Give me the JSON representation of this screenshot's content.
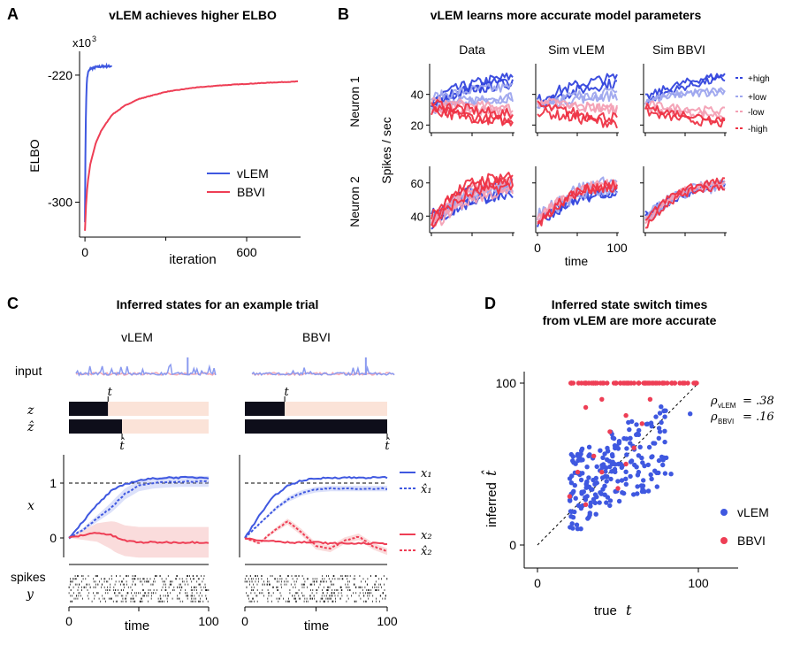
{
  "panels": {
    "A": {
      "letter": "A",
      "title": "vLEM achieves higher ELBO"
    },
    "B": {
      "letter": "B",
      "title": "vLEM learns more accurate model parameters"
    },
    "C": {
      "letter": "C",
      "title": "Inferred states for an example trial"
    },
    "D": {
      "letter": "D",
      "title_line1": "Inferred state switch times",
      "title_line2": "from vLEM are more accurate"
    }
  },
  "colors": {
    "vlem": "#3f58e0",
    "bbvi": "#ee3e55",
    "high_pos": "#3344dd",
    "low_pos": "#9ea6ee",
    "low_neg": "#f3a0b4",
    "high_neg": "#ee3344"
  },
  "chart_data": [
    {
      "id": "A",
      "type": "line",
      "title": "vLEM achieves higher ELBO",
      "xlabel": "iteration",
      "ylabel": "ELBO",
      "multiplier": "x10",
      "multiplier_exp": "3",
      "xlim": [
        -20,
        800
      ],
      "ylim": [
        -322,
        -205
      ],
      "xticks": [
        0,
        600
      ],
      "xtick_labels": [
        "0",
        "600"
      ],
      "yticks": [
        -220,
        -300
      ],
      "ytick_labels": [
        "-220",
        "-300"
      ],
      "legend": {
        "position": "bottom-right",
        "entries": [
          "vLEM",
          "BBVI"
        ]
      },
      "series": [
        {
          "name": "vLEM",
          "x": [
            0,
            1,
            2,
            4,
            6,
            8,
            12,
            20,
            40,
            60,
            80,
            100
          ],
          "y": [
            -312,
            -290,
            -262,
            -240,
            -228,
            -222,
            -218,
            -216,
            -215,
            -214.6,
            -214.4,
            -214.3
          ]
        },
        {
          "name": "BBVI",
          "x": [
            0,
            3,
            6,
            10,
            20,
            40,
            60,
            100,
            150,
            200,
            300,
            400,
            500,
            600,
            700,
            790
          ],
          "y": [
            -318,
            -305,
            -296,
            -288,
            -276,
            -263,
            -255,
            -245,
            -239,
            -235,
            -230.5,
            -228,
            -226.5,
            -225.5,
            -224.6,
            -224
          ]
        }
      ]
    },
    {
      "id": "B",
      "type": "line",
      "title": "vLEM learns more accurate model parameters",
      "columns": [
        "Data",
        "Sim vLEM",
        "Sim BBVI"
      ],
      "rows": [
        "Neuron 1",
        "Neuron 2"
      ],
      "ylabel": "Spikes / sec",
      "xlabel": "time",
      "xticks": [
        0,
        100
      ],
      "xtick_labels": [
        "0",
        "100"
      ],
      "row_yticks": [
        [
          "20",
          "40"
        ],
        [
          "40",
          "60"
        ]
      ],
      "row_ylims": [
        [
          15,
          60
        ],
        [
          30,
          70
        ]
      ],
      "legend": {
        "position": "right",
        "entries": [
          "+high",
          "+low",
          "-low",
          "-high"
        ]
      },
      "series_means": {
        "neuron1": {
          "+high": [
            35,
            41,
            45,
            48,
            50
          ],
          "+low": [
            35,
            38,
            40,
            41,
            42
          ],
          "-low": [
            33,
            31,
            30,
            29,
            28
          ],
          "-high": [
            30,
            27,
            25,
            23,
            22
          ]
        },
        "neuron2": {
          "+high": [
            38,
            46,
            52,
            55,
            57
          ],
          "+low": [
            38,
            47,
            54,
            57,
            58
          ],
          "-low": [
            37,
            48,
            55,
            58,
            59
          ],
          "-high": [
            36,
            49,
            56,
            59,
            60
          ]
        }
      }
    },
    {
      "id": "C",
      "type": "line",
      "title": "Inferred states for an example trial",
      "columns": [
        "vLEM",
        "BBVI"
      ],
      "row_labels": {
        "input": "input",
        "z": "z",
        "zhat": "ẑ",
        "x": "x",
        "spikes": "spikes",
        "y": "y",
        "t": "t",
        "that": "t̂"
      },
      "xlabel": "time",
      "xticks": [
        0,
        100
      ],
      "xtick_labels": [
        "0",
        "100"
      ],
      "yticks": [
        0,
        1
      ],
      "ytick_labels": [
        "0",
        "1"
      ],
      "switch_time_true": 28,
      "switch_time_inferred": {
        "vLEM": 38,
        "BBVI": 100
      },
      "legend": {
        "position": "right",
        "entries": [
          "x₁",
          "x̂₁",
          "x₂",
          "x̂₂"
        ]
      },
      "vLEM": {
        "x1_true": [
          0,
          0.3,
          0.6,
          0.85,
          0.98,
          1.05,
          1.08,
          1.1,
          1.1,
          1.1,
          1.1
        ],
        "x1_hat": [
          0,
          0.15,
          0.35,
          0.55,
          0.8,
          0.95,
          1.0,
          1.02,
          1.03,
          1.03,
          1.03
        ],
        "x2_true": [
          0,
          0.05,
          0.1,
          0.05,
          -0.05,
          -0.08,
          -0.08,
          -0.08,
          -0.08,
          -0.08,
          -0.08
        ]
      },
      "BBVI": {
        "x1_true": [
          0,
          0.4,
          0.75,
          0.95,
          1.05,
          1.08,
          1.1,
          1.1,
          1.1,
          1.1,
          1.1
        ],
        "x1_hat": [
          0,
          0.25,
          0.5,
          0.7,
          0.82,
          0.88,
          0.9,
          0.9,
          0.9,
          0.9,
          0.9
        ],
        "x2_true": [
          0,
          -0.05,
          -0.05,
          -0.08,
          -0.08,
          -0.08,
          -0.1,
          -0.1,
          -0.1,
          -0.1,
          -0.1
        ],
        "x2_hat": [
          0,
          -0.1,
          0.12,
          0.3,
          0.1,
          -0.15,
          -0.2,
          -0.05,
          0.02,
          -0.15,
          -0.25
        ]
      }
    },
    {
      "id": "D",
      "type": "scatter",
      "title": "Inferred state switch times from vLEM are more accurate",
      "xlabel": "true",
      "xlabel_sym": "t",
      "ylabel": "inferred",
      "ylabel_sym": "t̂",
      "xlim": [
        -5,
        120
      ],
      "ylim": [
        -5,
        105
      ],
      "xticks": [
        0,
        100
      ],
      "xtick_labels": [
        "0",
        "100"
      ],
      "yticks": [
        0,
        100
      ],
      "ytick_labels": [
        "0",
        "100"
      ],
      "annotations": [
        {
          "sym": "ρ",
          "sub": "vLEM",
          "value": "= .38"
        },
        {
          "sym": "ρ",
          "sub": "BBVI",
          "value": "= .16"
        }
      ],
      "legend": {
        "position": "right",
        "entries": [
          "vLEM",
          "BBVI"
        ]
      },
      "series": [
        {
          "name": "BBVI",
          "n_at_100": 70,
          "x_range_at_100": [
            17,
            99
          ],
          "extra_points": [
            [
              30,
              85
            ],
            [
              40,
              90
            ],
            [
              45,
              70
            ],
            [
              55,
              80
            ],
            [
              35,
              55
            ],
            [
              25,
              45
            ],
            [
              60,
              60
            ],
            [
              50,
              35
            ],
            [
              20,
              30
            ],
            [
              65,
              75
            ],
            [
              40,
              45
            ],
            [
              30,
              25
            ],
            [
              55,
              50
            ],
            [
              70,
              90
            ]
          ]
        },
        {
          "name": "vLEM",
          "n": 220,
          "x_range": [
            17,
            99
          ],
          "y_range": [
            10,
            95
          ]
        }
      ]
    }
  ]
}
